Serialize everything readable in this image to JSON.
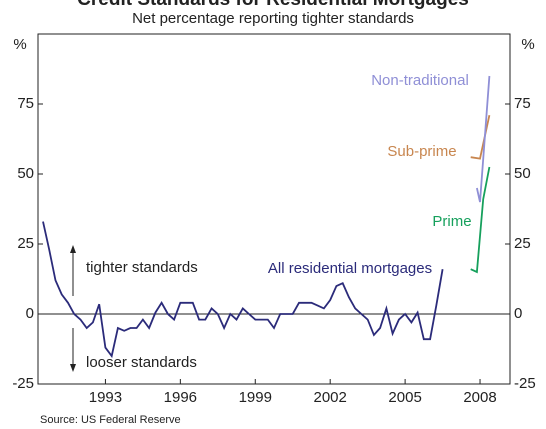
{
  "chart_data": {
    "type": "line",
    "title": "Credit Standards for Residential Mortgages",
    "subtitle": "Net percentage reporting tighter standards",
    "y_label": "%",
    "y2_label": "%",
    "source": "Source: US Federal Reserve",
    "annotations": [
      "tighter standards",
      "looser standards"
    ],
    "xlim": [
      1990.3,
      2009.2
    ],
    "xticks": [
      1993,
      1996,
      1999,
      2002,
      2005,
      2008
    ],
    "ylim": [
      -25,
      100
    ],
    "yticks": [
      -25,
      0,
      25,
      50,
      75
    ],
    "y2lim": [
      -25,
      100
    ],
    "y2ticks": [
      -25,
      0,
      25,
      50,
      75
    ],
    "series": [
      {
        "name": "All residential mortgages",
        "color": "#2b2b7a",
        "x": [
          1990.5,
          1990.75,
          1991,
          1991.25,
          1991.5,
          1991.75,
          1992,
          1992.25,
          1992.5,
          1992.75,
          1993,
          1993.25,
          1993.5,
          1993.75,
          1994,
          1994.25,
          1994.5,
          1994.75,
          1995,
          1995.25,
          1995.5,
          1995.75,
          1996,
          1996.25,
          1996.5,
          1996.75,
          1997,
          1997.25,
          1997.5,
          1997.75,
          1998,
          1998.25,
          1998.5,
          1998.75,
          1999,
          1999.25,
          1999.5,
          1999.75,
          2000,
          2000.25,
          2000.5,
          2000.75,
          2001,
          2001.25,
          2001.5,
          2001.75,
          2002,
          2002.25,
          2002.5,
          2002.75,
          2003,
          2003.25,
          2003.5,
          2003.75,
          2004,
          2004.25,
          2004.5,
          2004.75,
          2005,
          2005.25,
          2005.5,
          2005.75,
          2006,
          2006.25,
          2006.5
        ],
        "values": [
          33,
          23,
          12,
          7,
          4,
          0,
          -2,
          -5,
          -3,
          3.5,
          -12,
          -15,
          -5,
          -6,
          -5,
          -5,
          -2,
          -5,
          0.5,
          4,
          0,
          -2,
          4,
          4,
          4,
          -2,
          -2,
          2,
          0,
          -5,
          0,
          -2,
          2,
          0,
          -2,
          -2,
          -2,
          -5,
          0,
          0,
          0,
          4,
          4,
          4,
          3,
          2,
          5,
          10,
          11,
          6,
          2,
          0,
          -2,
          -7.5,
          -5,
          2,
          -7,
          -2,
          0,
          -3,
          0.5,
          -9,
          -9,
          3,
          16
        ]
      },
      {
        "name": "Prime",
        "color": "#16a05c",
        "x": [
          2007.625,
          2007.875,
          2008.125,
          2008.375
        ],
        "values": [
          16,
          15,
          41,
          52.5
        ]
      },
      {
        "name": "Sub-prime",
        "color": "#c8864f",
        "x": [
          2007.625,
          2008.0,
          2008.375
        ],
        "values": [
          56,
          55.5,
          71
        ]
      },
      {
        "name": "Non-traditional",
        "color": "#8f8fd6",
        "x": [
          2007.875,
          2008.0,
          2008.375
        ],
        "values": [
          45,
          40,
          85
        ]
      }
    ]
  }
}
